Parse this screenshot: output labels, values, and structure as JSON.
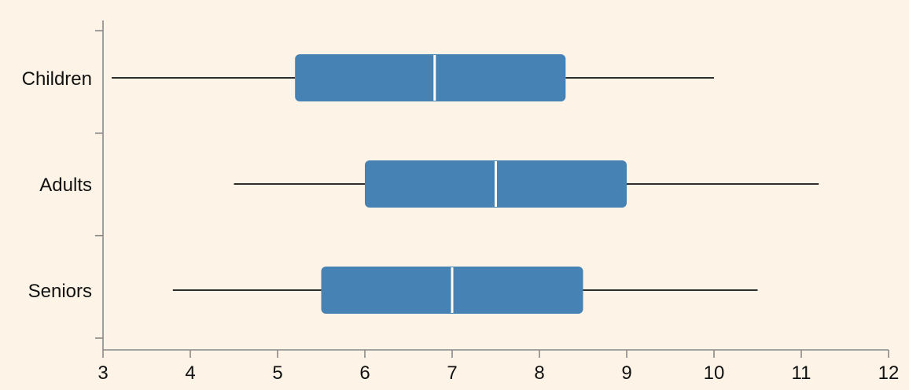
{
  "chart_data": {
    "type": "boxplot",
    "orientation": "horizontal",
    "categories": [
      "Children",
      "Adults",
      "Seniors"
    ],
    "series": [
      {
        "values": [
          {
            "category": "Children",
            "min": 3.1,
            "q1": 5.2,
            "median": 6.8,
            "q3": 8.3,
            "max": 10.0
          },
          {
            "category": "Adults",
            "min": 4.5,
            "q1": 6.0,
            "median": 7.5,
            "q3": 9.0,
            "max": 11.2
          },
          {
            "category": "Seniors",
            "min": 3.8,
            "q1": 5.5,
            "median": 7.0,
            "q3": 8.5,
            "max": 10.5
          }
        ]
      }
    ],
    "xlim": [
      3,
      12
    ],
    "x_ticks": [
      3,
      4,
      5,
      6,
      7,
      8,
      9,
      10,
      11,
      12
    ],
    "grid": false,
    "colors": {
      "background": "#fdf3e6",
      "box": "#4682b4",
      "median": "#ffffff",
      "whisker": "#111111",
      "axis": "#8a8a8a"
    }
  }
}
